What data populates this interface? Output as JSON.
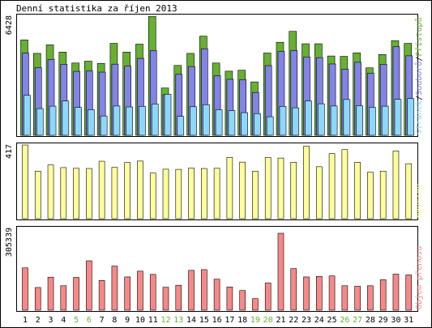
{
  "title": "Denní statistika za říjen 2013",
  "colors": {
    "background": "#ffffff",
    "frame": "#000000",
    "hits": "#66B033",
    "files": "#8383E9",
    "pages": "#8DD8FA",
    "visits": "#FFFF9A",
    "kbytes": "#F88888",
    "weekend_label": "#66B033",
    "weekday_label": "#000000"
  },
  "chart_data": [
    {
      "type": "bar",
      "name": "hits-files-pages",
      "ymax_label": "6428",
      "ylim": [
        0,
        6428
      ],
      "grid": false,
      "legend": {
        "placement": "right-vertical",
        "items": [
          {
            "text": "Stránek",
            "color": "#8DD8FA"
          },
          {
            "text": "/",
            "color": "#000000"
          },
          {
            "text": "Souborů",
            "color": "#8383E9"
          },
          {
            "text": "/",
            "color": "#000000"
          },
          {
            "text": "Přístupů",
            "color": "#66B033"
          }
        ]
      },
      "categories": [
        "1",
        "2",
        "3",
        "4",
        "5",
        "6",
        "7",
        "8",
        "9",
        "10",
        "11",
        "12",
        "13",
        "14",
        "15",
        "16",
        "17",
        "18",
        "19",
        "20",
        "21",
        "22",
        "23",
        "24",
        "25",
        "26",
        "27",
        "28",
        "29",
        "30",
        "31"
      ],
      "series": [
        {
          "name": "Přístupů",
          "color": "#66B033",
          "values": [
            5150,
            4420,
            4880,
            4490,
            3900,
            4000,
            3880,
            4960,
            4490,
            4920,
            6420,
            2550,
            3770,
            4420,
            5350,
            3900,
            3460,
            3510,
            2880,
            4440,
            5020,
            5610,
            4940,
            4940,
            4280,
            4260,
            4450,
            3640,
            4360,
            5110,
            4960
          ]
        },
        {
          "name": "Souborů",
          "color": "#8383E9",
          "values": [
            4440,
            3650,
            4090,
            3830,
            3450,
            3470,
            3410,
            3840,
            3730,
            4150,
            4580,
            2190,
            3290,
            3710,
            4670,
            3210,
            3020,
            3000,
            2310,
            3760,
            4520,
            4580,
            4220,
            4190,
            3850,
            3570,
            3940,
            3350,
            3830,
            4780,
            4290
          ]
        },
        {
          "name": "Stránek",
          "color": "#8DD8FA",
          "values": [
            2160,
            1440,
            1570,
            1850,
            1500,
            1380,
            1040,
            1580,
            1530,
            1560,
            1690,
            2210,
            1020,
            1540,
            1650,
            1380,
            1330,
            1220,
            1170,
            1000,
            1560,
            1480,
            1850,
            1700,
            1580,
            1930,
            1590,
            1510,
            1570,
            1940,
            1980
          ]
        }
      ]
    },
    {
      "type": "bar",
      "name": "visits",
      "ymax_label": "417",
      "ylim": [
        0,
        417
      ],
      "grid": false,
      "legend": {
        "placement": "right-vertical",
        "items": [
          {
            "text": "Návštěv",
            "color": "#FFFF9A"
          }
        ]
      },
      "categories": [
        "1",
        "2",
        "3",
        "4",
        "5",
        "6",
        "7",
        "8",
        "9",
        "10",
        "11",
        "12",
        "13",
        "14",
        "15",
        "16",
        "17",
        "18",
        "19",
        "20",
        "21",
        "22",
        "23",
        "24",
        "25",
        "26",
        "27",
        "28",
        "29",
        "30",
        "31"
      ],
      "series": [
        {
          "name": "Návštěv",
          "color": "#FFFF9A",
          "values": [
            417,
            269,
            304,
            289,
            285,
            284,
            325,
            290,
            318,
            326,
            258,
            280,
            279,
            286,
            284,
            285,
            347,
            320,
            268,
            347,
            343,
            319,
            410,
            294,
            368,
            391,
            319,
            263,
            269,
            383,
            311
          ]
        }
      ]
    },
    {
      "type": "bar",
      "name": "kbytes",
      "ymax_label": "305339",
      "ylim": [
        0,
        305339
      ],
      "grid": false,
      "legend": {
        "placement": "right-vertical",
        "items": [
          {
            "text": "Objem přenosu",
            "color": "#F88888"
          }
        ]
      },
      "categories": [
        "1",
        "2",
        "3",
        "4",
        "5",
        "6",
        "7",
        "8",
        "9",
        "10",
        "11",
        "12",
        "13",
        "14",
        "15",
        "16",
        "17",
        "18",
        "19",
        "20",
        "21",
        "22",
        "23",
        "24",
        "25",
        "26",
        "27",
        "28",
        "29",
        "30",
        "31"
      ],
      "series": [
        {
          "name": "Objem přenosu",
          "color": "#F88888",
          "values": [
            168000,
            90000,
            131000,
            97000,
            130000,
            196000,
            118000,
            175000,
            132000,
            155000,
            142000,
            91000,
            99000,
            158000,
            161000,
            123000,
            92000,
            78000,
            46000,
            108000,
            305339,
            165000,
            132000,
            134000,
            136000,
            97000,
            95000,
            97000,
            121000,
            143000,
            140000
          ]
        }
      ]
    }
  ],
  "weekend_days": [
    "5",
    "6",
    "12",
    "13",
    "19",
    "20",
    "26",
    "27"
  ]
}
